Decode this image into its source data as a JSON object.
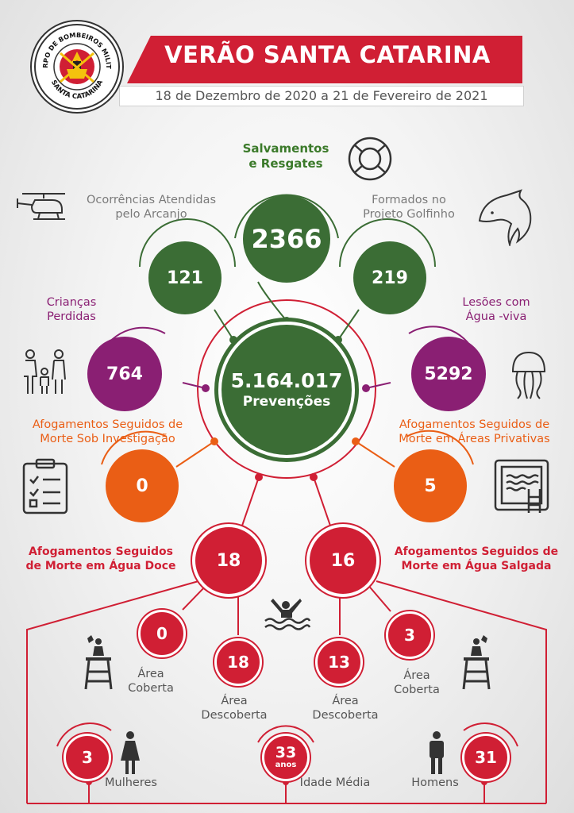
{
  "header": {
    "title": "VERÃO SANTA CATARINA",
    "dates": "18 de Dezembro de 2020 a 21 de Fevereiro de 2021"
  },
  "logo": {
    "text_top": "CORPO DE BOMBEIROS MILITAR",
    "text_bottom": "SANTA CATARINA"
  },
  "center": {
    "value": "5.164.017",
    "label": "Prevenções"
  },
  "salvamentos": {
    "label_line1": "Salvamentos",
    "label_line2": "e Resgates",
    "value": "2366"
  },
  "arcanjo": {
    "label_line1": "Ocorrências Atendidas",
    "label_line2": "pelo Arcanjo",
    "value": "121"
  },
  "golfinho": {
    "label_line1": "Formados no",
    "label_line2": "Projeto Golfinho",
    "value": "219"
  },
  "criancas": {
    "label_line1": "Crianças",
    "label_line2": "Perdidas",
    "value": "764"
  },
  "agua_viva": {
    "label_line1": "Lesões com",
    "label_line2": "Água -viva",
    "value": "5292"
  },
  "investigacao": {
    "label_line1": "Afogamentos Seguidos de",
    "label_line2": "Morte Sob Investigação",
    "value": "0"
  },
  "privativas": {
    "label_line1": "Afogamentos Seguidos de",
    "label_line2": "Morte em Áreas Privativas",
    "value": "5"
  },
  "agua_doce": {
    "label_line1": "Afogamentos Seguidos",
    "label_line2": "de Morte em Água Doce",
    "value": "18"
  },
  "agua_salgada": {
    "label_line1": "Afogamentos Seguidos de",
    "label_line2": "Morte em Água Salgada",
    "value": "16"
  },
  "doce_coberta": {
    "value": "0",
    "label_line1": "Área",
    "label_line2": "Coberta"
  },
  "doce_descoberta": {
    "value": "18",
    "label_line1": "Área",
    "label_line2": "Descoberta"
  },
  "salgada_descoberta": {
    "value": "13",
    "label_line1": "Área",
    "label_line2": "Descoberta"
  },
  "salgada_coberta": {
    "value": "3",
    "label_line1": "Área",
    "label_line2": "Coberta"
  },
  "mulheres": {
    "value": "3",
    "label": "Mulheres"
  },
  "idade": {
    "value": "33",
    "unit": "anos",
    "label": "Idade Média"
  },
  "homens": {
    "value": "31",
    "label": "Homens"
  },
  "icons": [
    "helicopter-icon",
    "lifebuoy-icon",
    "dolphin-icon",
    "family-icon",
    "jellyfish-icon",
    "checklist-icon",
    "pool-icon",
    "drowning-icon",
    "lifeguard-tower-icon",
    "woman-icon",
    "man-icon"
  ],
  "colors": {
    "green": "#3b6d35",
    "purple": "#8a1f73",
    "orange": "#ea5e15",
    "red": "#d01f34"
  }
}
